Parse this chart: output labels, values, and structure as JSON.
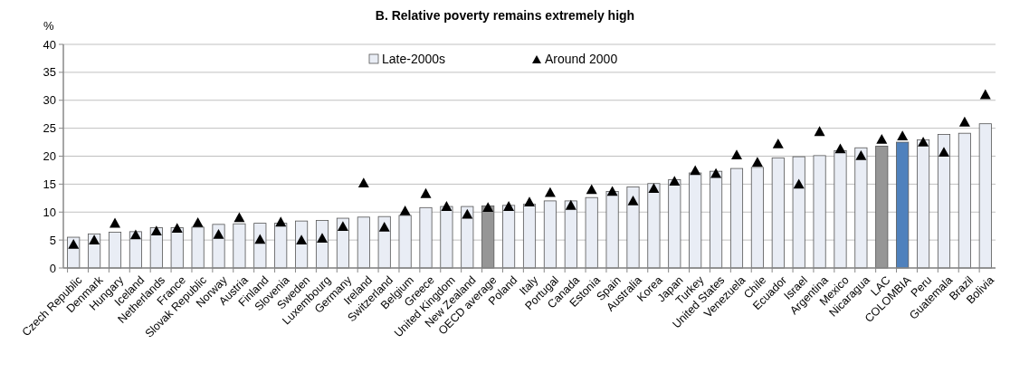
{
  "chart_data": {
    "type": "bar",
    "title": "B. Relative poverty remains extremely high",
    "ylabel": "%",
    "categories": [
      "Czech Republic",
      "Denmark",
      "Hungary",
      "Iceland",
      "Netherlands",
      "France",
      "Slovak Republic",
      "Norway",
      "Austria",
      "Finland",
      "Slovenia",
      "Sweden",
      "Luxembourg",
      "Germany",
      "Ireland",
      "Switzerland",
      "Belgium",
      "Greece",
      "United Kingdom",
      "New Zealand",
      "OECD average",
      "Poland",
      "Italy",
      "Portugal",
      "Canada",
      "Estonia",
      "Spain",
      "Australia",
      "Korea",
      "Japan",
      "Turkey",
      "United States",
      "Venezuela",
      "Chile",
      "Ecuador",
      "Israel",
      "Argentina",
      "Mexico",
      "Nicaragua",
      "LAC",
      "COLOMBIA",
      "Peru",
      "Guatemala",
      "Brazil",
      "Bolivia"
    ],
    "series": [
      {
        "name": "Late-2000s",
        "color": "#e9edf5",
        "colors": [
          "#e9edf5",
          "#e9edf5",
          "#e9edf5",
          "#e9edf5",
          "#e9edf5",
          "#e9edf5",
          "#e9edf5",
          "#e9edf5",
          "#e9edf5",
          "#e9edf5",
          "#e9edf5",
          "#e9edf5",
          "#e9edf5",
          "#e9edf5",
          "#e9edf5",
          "#e9edf5",
          "#e9edf5",
          "#e9edf5",
          "#e9edf5",
          "#e9edf5",
          "#969696",
          "#e9edf5",
          "#e9edf5",
          "#e9edf5",
          "#e9edf5",
          "#e9edf5",
          "#e9edf5",
          "#e9edf5",
          "#e9edf5",
          "#e9edf5",
          "#e9edf5",
          "#e9edf5",
          "#e9edf5",
          "#e9edf5",
          "#e9edf5",
          "#e9edf5",
          "#e9edf5",
          "#e9edf5",
          "#e9edf5",
          "#969696",
          "#4f81bd",
          "#e9edf5",
          "#e9edf5",
          "#e9edf5",
          "#e9edf5"
        ],
        "values": [
          5.5,
          6.1,
          6.4,
          6.5,
          7.2,
          7.2,
          7.3,
          7.8,
          7.9,
          8.0,
          8.0,
          8.4,
          8.5,
          8.9,
          9.1,
          9.2,
          9.4,
          10.8,
          11.0,
          11.0,
          11.1,
          11.2,
          11.4,
          12.0,
          12.0,
          12.6,
          13.7,
          14.5,
          15.1,
          15.8,
          17.0,
          17.3,
          17.8,
          18.0,
          19.7,
          19.9,
          20.1,
          21.0,
          21.5,
          21.8,
          22.5,
          22.9,
          23.9,
          24.1,
          25.8
        ]
      },
      {
        "name": "Around 2000",
        "type": "scatter",
        "marker": "triangle",
        "color": "#000000",
        "values": [
          4.2,
          5.0,
          8.0,
          5.9,
          6.6,
          7.1,
          8.1,
          6.0,
          9.0,
          5.1,
          8.2,
          5.0,
          5.3,
          7.4,
          15.2,
          7.3,
          10.2,
          13.3,
          11.0,
          9.6,
          10.8,
          11.0,
          11.8,
          13.5,
          11.2,
          14.0,
          13.7,
          12.0,
          14.2,
          15.5,
          17.4,
          16.9,
          20.2,
          18.9,
          22.2,
          15.0,
          24.4,
          21.3,
          20.1,
          23.0,
          23.6,
          22.5,
          20.7,
          26.1,
          31.0
        ]
      }
    ],
    "ylim": [
      0,
      40
    ],
    "yticks": [
      0,
      5,
      10,
      15,
      20,
      25,
      30,
      35,
      40
    ],
    "grid": "y",
    "legend": "top"
  }
}
